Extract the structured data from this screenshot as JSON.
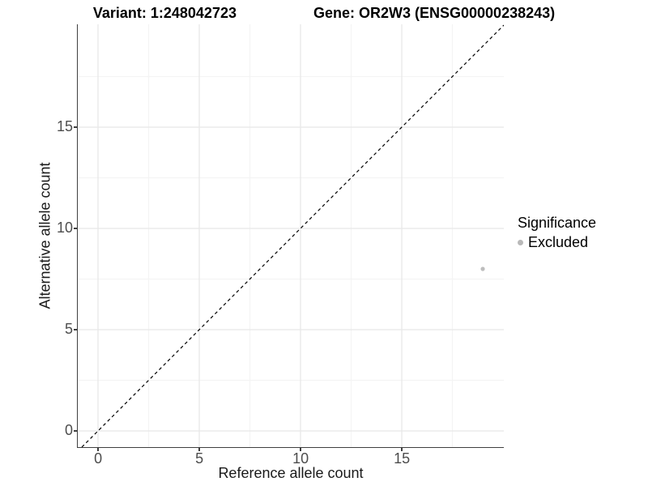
{
  "header": {
    "variant_label": "Variant: 1:248042723",
    "gene_label": "Gene: OR2W3 (ENSG00000238243)"
  },
  "colors": {
    "grid_major": "#e8e8e8",
    "grid_minor": "#f4f4f4",
    "axis_line": "#404040",
    "tick_label": "#4d4d4d",
    "title_text": "#000000",
    "point": "#bdbdbd",
    "identity_line": "#000000",
    "background": "#ffffff"
  },
  "chart_data": {
    "type": "scatter",
    "title": "Variant: 1:248042723   Gene: OR2W3 (ENSG00000238243)",
    "xlabel": "Reference allele count",
    "ylabel": "Alternative allele count",
    "xlim": [
      -1.0,
      20.04
    ],
    "ylim": [
      -0.8,
      20.08
    ],
    "x_ticks": [
      0,
      5,
      10,
      15
    ],
    "y_ticks": [
      0,
      5,
      10,
      15
    ],
    "x_minor": [
      2.5,
      7.5,
      12.5,
      17.5
    ],
    "y_minor": [
      2.5,
      7.5,
      12.5,
      17.5
    ],
    "grid": "major and minor, light gray on white",
    "reference_line": {
      "kind": "identity y=x",
      "style": "dashed",
      "color": "#000000"
    },
    "series": [
      {
        "name": "Excluded",
        "color": "#bdbdbd",
        "points": [
          {
            "x": 19,
            "y": 8
          }
        ]
      }
    ],
    "legend": {
      "title": "Significance",
      "position": "right",
      "items": [
        {
          "label": "Excluded",
          "color": "#b9b9b9",
          "marker": "dot"
        }
      ]
    }
  }
}
